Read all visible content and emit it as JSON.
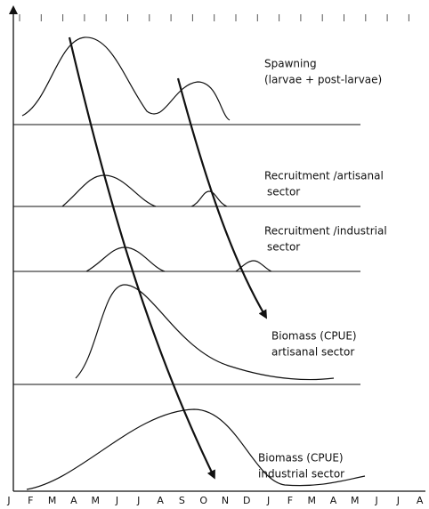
{
  "months": [
    "J",
    "F",
    "M",
    "A",
    "M",
    "J",
    "J",
    "A",
    "S",
    "O",
    "N",
    "D",
    "J",
    "F",
    "M",
    "A",
    "M",
    "J",
    "J",
    "A"
  ],
  "panels": [
    {
      "lines": [
        "Spawning",
        "(larvae + post-larvae)"
      ]
    },
    {
      "lines": [
        "Recruitment /artisanal",
        "sector"
      ]
    },
    {
      "lines": [
        "Recruitment /industrial",
        "sector"
      ]
    },
    {
      "lines": [
        "Biomass (CPUE)",
        "artisanal sector"
      ]
    },
    {
      "lines": [
        "Biomass (CPUE)",
        "industrial sector"
      ]
    }
  ]
}
